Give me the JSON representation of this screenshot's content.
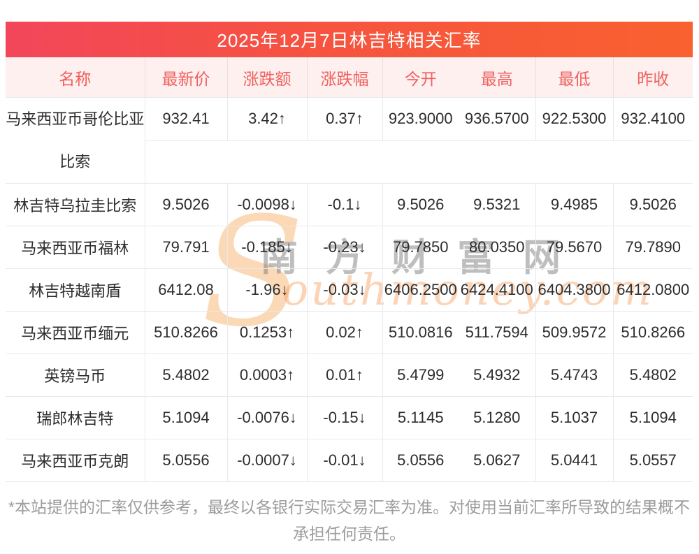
{
  "title": "2025年12月7日林吉特相关汇率",
  "table": {
    "headers": [
      "名称",
      "最新价",
      "涨跌额",
      "涨跌幅",
      "今开",
      "最高",
      "最低",
      "昨收"
    ],
    "rows": [
      {
        "name": "马来西亚币哥伦比亚比索",
        "latest": "932.41",
        "change": "3.42↑",
        "change_pct": "0.37↑",
        "open": "923.9000",
        "high": "936.5700",
        "low": "922.5300",
        "prev_close": "932.4100",
        "trend": "up",
        "tall": true
      },
      {
        "name": "林吉特乌拉圭比索",
        "latest": "9.5026",
        "change": "-0.0098↓",
        "change_pct": "-0.1↓",
        "open": "9.5026",
        "high": "9.5321",
        "low": "9.4985",
        "prev_close": "9.5026",
        "trend": "down",
        "tall": false
      },
      {
        "name": "马来西亚币福林",
        "latest": "79.791",
        "change": "-0.185↓",
        "change_pct": "-0.23↓",
        "open": "79.7850",
        "high": "80.0350",
        "low": "79.5670",
        "prev_close": "79.7890",
        "trend": "down",
        "tall": false
      },
      {
        "name": "林吉特越南盾",
        "latest": "6412.08",
        "change": "-1.96↓",
        "change_pct": "-0.03↓",
        "open": "6406.2500",
        "high": "6424.4100",
        "low": "6404.3800",
        "prev_close": "6412.0800",
        "trend": "down",
        "tall": false
      },
      {
        "name": "马来西亚币缅元",
        "latest": "510.8266",
        "change": "0.1253↑",
        "change_pct": "0.02↑",
        "open": "510.0816",
        "high": "511.7594",
        "low": "509.9572",
        "prev_close": "510.8266",
        "trend": "up",
        "tall": false
      },
      {
        "name": "英镑马币",
        "latest": "5.4802",
        "change": "0.0003↑",
        "change_pct": "0.01↑",
        "open": "5.4799",
        "high": "5.4932",
        "low": "5.4743",
        "prev_close": "5.4802",
        "trend": "up",
        "tall": false
      },
      {
        "name": "瑞郎林吉特",
        "latest": "5.1094",
        "change": "-0.0076↓",
        "change_pct": "-0.15↓",
        "open": "5.1145",
        "high": "5.1280",
        "low": "5.1037",
        "prev_close": "5.1094",
        "trend": "down",
        "tall": false
      },
      {
        "name": "马来西亚币克朗",
        "latest": "5.0556",
        "change": "-0.0007↓",
        "change_pct": "-0.01↓",
        "open": "5.0556",
        "high": "5.0627",
        "low": "5.0441",
        "prev_close": "5.0557",
        "trend": "down",
        "tall": false
      }
    ]
  },
  "watermark": {
    "cjk": "南方财富网",
    "script_initial": "S",
    "script_rest": "outhmoney.com"
  },
  "footer": "*本站提供的汇率仅供参考，最终以各银行实际交易汇率为准。对使用当前汇率所导致的结果概不承担任何责任。",
  "colors": {
    "up": "#f52222",
    "down": "#0b8f0b",
    "title_gradient_left": "#f2465a",
    "title_gradient_right": "#f8612f",
    "header_bg": "#fdf0ef",
    "header_text": "#f0605e",
    "grid_line": "#e8e9eb"
  }
}
